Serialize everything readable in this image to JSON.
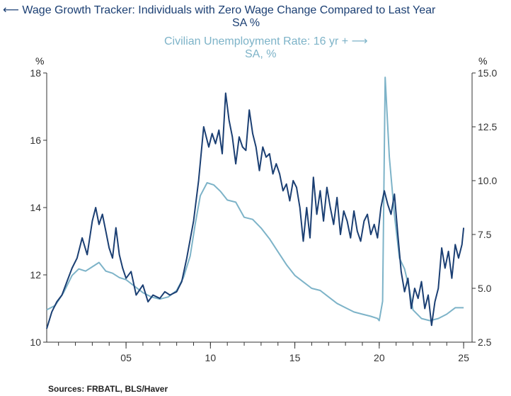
{
  "legend": {
    "left_series_line1": "Wage Growth Tracker: Individuals with Zero Wage Change Compared to Last Year",
    "left_series_line2": "SA    %",
    "right_series_line1": "Civilian Unemployment Rate: 16 yr +",
    "right_series_line2": "SA, %"
  },
  "source": "Sources:  FRBATL, BLS/Haver",
  "colors": {
    "left_series": "#1b3f73",
    "right_series": "#7db3c8",
    "axis": "#333333"
  },
  "chart_data": {
    "type": "line",
    "x_tick_labels": [
      "05",
      "10",
      "15",
      "20",
      "25"
    ],
    "x_tick_years": [
      2005,
      2010,
      2015,
      2020,
      2025
    ],
    "xlim": [
      2000.3,
      2025.5
    ],
    "left_axis": {
      "unit": "%",
      "ylim": [
        10,
        18
      ],
      "ticks": [
        "10",
        "12",
        "14",
        "16",
        "18"
      ]
    },
    "right_axis": {
      "unit": "%",
      "ylim": [
        2.5,
        15.0
      ],
      "ticks": [
        "2.5",
        "5.0",
        "7.5",
        "10.0",
        "12.5",
        "15.0"
      ]
    },
    "series": [
      {
        "name": "Wage Growth Tracker: Individuals with Zero Wage Change Compared to Last Year",
        "axis": "left",
        "x": [
          2000.3,
          2000.6,
          2000.9,
          2001.2,
          2001.5,
          2001.8,
          2002.1,
          2002.4,
          2002.7,
          2003.0,
          2003.2,
          2003.4,
          2003.6,
          2003.8,
          2004.0,
          2004.2,
          2004.4,
          2004.6,
          2004.8,
          2005.0,
          2005.3,
          2005.6,
          2006.0,
          2006.3,
          2006.6,
          2007.0,
          2007.3,
          2007.6,
          2008.0,
          2008.3,
          2008.6,
          2009.0,
          2009.3,
          2009.6,
          2009.9,
          2010.1,
          2010.3,
          2010.5,
          2010.7,
          2010.9,
          2011.1,
          2011.3,
          2011.5,
          2011.7,
          2011.9,
          2012.1,
          2012.3,
          2012.5,
          2012.7,
          2012.9,
          2013.1,
          2013.3,
          2013.5,
          2013.7,
          2013.9,
          2014.1,
          2014.3,
          2014.5,
          2014.7,
          2014.9,
          2015.1,
          2015.3,
          2015.5,
          2015.7,
          2015.9,
          2016.1,
          2016.3,
          2016.5,
          2016.7,
          2016.9,
          2017.1,
          2017.3,
          2017.5,
          2017.7,
          2017.9,
          2018.1,
          2018.3,
          2018.5,
          2018.7,
          2018.9,
          2019.1,
          2019.3,
          2019.5,
          2019.7,
          2019.9,
          2020.1,
          2020.3,
          2020.5,
          2020.7,
          2020.9,
          2021.1,
          2021.3,
          2021.5,
          2021.7,
          2021.9,
          2022.1,
          2022.3,
          2022.5,
          2022.7,
          2022.9,
          2023.1,
          2023.3,
          2023.5,
          2023.7,
          2023.9,
          2024.1,
          2024.3,
          2024.5,
          2024.7,
          2024.9,
          2025.0
        ],
        "y": [
          10.4,
          10.9,
          11.2,
          11.4,
          11.8,
          12.2,
          12.5,
          13.1,
          12.6,
          13.6,
          14.0,
          13.5,
          13.8,
          13.3,
          12.8,
          12.5,
          13.4,
          12.6,
          12.2,
          11.9,
          12.1,
          11.4,
          11.7,
          11.2,
          11.4,
          11.3,
          11.5,
          11.4,
          11.5,
          11.8,
          12.5,
          13.6,
          14.8,
          16.4,
          15.8,
          16.2,
          15.9,
          16.3,
          15.6,
          17.4,
          16.6,
          16.1,
          15.3,
          16.1,
          15.8,
          15.7,
          16.9,
          16.2,
          15.8,
          15.1,
          15.8,
          15.5,
          15.6,
          15.0,
          15.3,
          15.0,
          14.5,
          14.7,
          14.2,
          14.8,
          14.6,
          14.0,
          13.0,
          14.0,
          13.1,
          14.9,
          13.8,
          14.5,
          13.6,
          14.6,
          14.0,
          13.5,
          14.3,
          13.2,
          13.9,
          13.6,
          13.1,
          13.9,
          13.3,
          13.0,
          13.6,
          13.8,
          13.2,
          13.5,
          13.1,
          14.0,
          14.5,
          14.1,
          13.8,
          14.4,
          13.2,
          12.1,
          11.5,
          11.9,
          11.0,
          11.6,
          11.3,
          11.8,
          11.0,
          11.4,
          10.5,
          11.2,
          11.6,
          12.8,
          12.2,
          12.7,
          11.9,
          12.9,
          12.5,
          12.9,
          13.4
        ]
      },
      {
        "name": "Civilian Unemployment Rate: 16 yr +",
        "axis": "right",
        "x": [
          2000.3,
          2000.8,
          2001.3,
          2001.8,
          2002.2,
          2002.6,
          2003.0,
          2003.4,
          2003.8,
          2004.2,
          2004.6,
          2005.0,
          2005.5,
          2006.0,
          2006.5,
          2007.0,
          2007.5,
          2008.0,
          2008.4,
          2008.8,
          2009.1,
          2009.4,
          2009.8,
          2010.2,
          2010.6,
          2011.0,
          2011.5,
          2012.0,
          2012.5,
          2013.0,
          2013.5,
          2014.0,
          2014.5,
          2015.0,
          2015.5,
          2016.0,
          2016.5,
          2017.0,
          2017.5,
          2018.0,
          2018.5,
          2019.0,
          2019.5,
          2019.9,
          2020.0,
          2020.2,
          2020.35,
          2020.6,
          2020.9,
          2021.2,
          2021.5,
          2021.8,
          2022.0,
          2022.5,
          2023.0,
          2023.5,
          2024.0,
          2024.5,
          2024.8,
          2025.0
        ],
        "y": [
          4.0,
          4.2,
          4.8,
          5.6,
          5.9,
          5.8,
          6.0,
          6.2,
          5.8,
          5.7,
          5.5,
          5.4,
          5.1,
          4.8,
          4.6,
          4.5,
          4.6,
          4.9,
          5.5,
          6.5,
          8.0,
          9.3,
          9.9,
          9.8,
          9.5,
          9.1,
          9.0,
          8.3,
          8.2,
          7.8,
          7.3,
          6.7,
          6.1,
          5.6,
          5.3,
          5.0,
          4.9,
          4.6,
          4.3,
          4.1,
          3.9,
          3.8,
          3.7,
          3.6,
          3.5,
          4.4,
          14.8,
          11.1,
          8.4,
          6.4,
          5.9,
          4.9,
          4.0,
          3.6,
          3.5,
          3.6,
          3.8,
          4.1,
          4.1,
          4.1
        ]
      }
    ]
  }
}
